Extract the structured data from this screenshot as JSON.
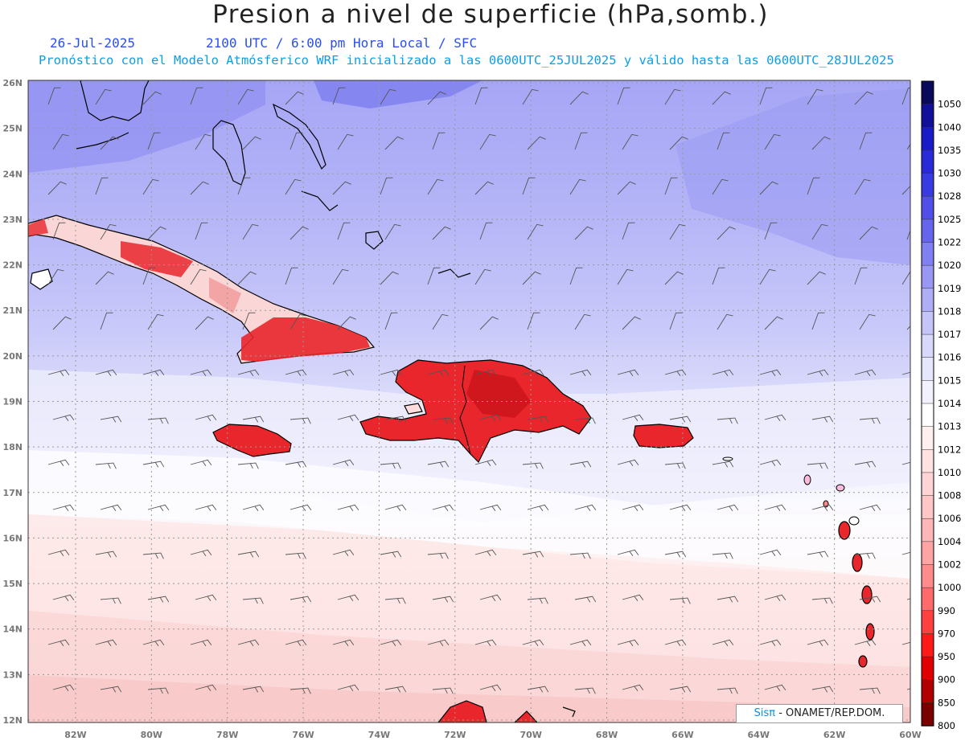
{
  "title": "Presion a nivel de superficie (hPa,somb.)",
  "date": "26-Jul-2025",
  "valid_time": "2100 UTC / 6:00 pm Hora Local / SFC",
  "subtitle": "Pronóstico con el Modelo Atmósferico WRF inicializado a las 0600UTC_25JUL2025 y válido hasta las  0600UTC_28JUL2025",
  "credit": {
    "logo": "Sisπ",
    "text": "- ONAMET/REP.DOM."
  },
  "lat_labels": [
    "26N",
    "25N",
    "24N",
    "23N",
    "22N",
    "21N",
    "20N",
    "19N",
    "18N",
    "17N",
    "16N",
    "15N",
    "14N",
    "13N",
    "12N"
  ],
  "lon_labels": [
    "82W",
    "80W",
    "78W",
    "76W",
    "74W",
    "72W",
    "70W",
    "68W",
    "66W",
    "64W",
    "62W",
    "60W"
  ],
  "colorbar": {
    "levels": [
      "1050",
      "1040",
      "1035",
      "1030",
      "1028",
      "1025",
      "1022",
      "1020",
      "1019",
      "1018",
      "1017",
      "1016",
      "1015",
      "1014",
      "1013",
      "1012",
      "1010",
      "1008",
      "1006",
      "1004",
      "1002",
      "1000",
      "990",
      "970",
      "950",
      "900",
      "850",
      "800"
    ],
    "colors": [
      "#0a0a5a",
      "#10109a",
      "#1a1ac8",
      "#2a2ad8",
      "#3a3ae2",
      "#5050e8",
      "#6666ec",
      "#8080f0",
      "#9898f4",
      "#aeaef7",
      "#c4c4f9",
      "#d8d8fb",
      "#e6e6fc",
      "#f2f2fe",
      "#ffffff",
      "#fff0f0",
      "#ffe2e2",
      "#ffd4d4",
      "#ffc6c6",
      "#ffb6b6",
      "#ffa4a4",
      "#ff8c8c",
      "#ff6a6a",
      "#ff4040",
      "#ff1a1a",
      "#e00000",
      "#b00000",
      "#7a0000"
    ]
  },
  "field_colors": {
    "high_north": "#8f8ff2",
    "mid_north": "#aeaef7",
    "lighter": "#c8c8fa",
    "pale": "#e3e3fc",
    "neutral": "#f6f6fe",
    "south_pink": "#fde6e6",
    "south_pink2": "#fad4d4",
    "land_low": "#e8262c"
  }
}
